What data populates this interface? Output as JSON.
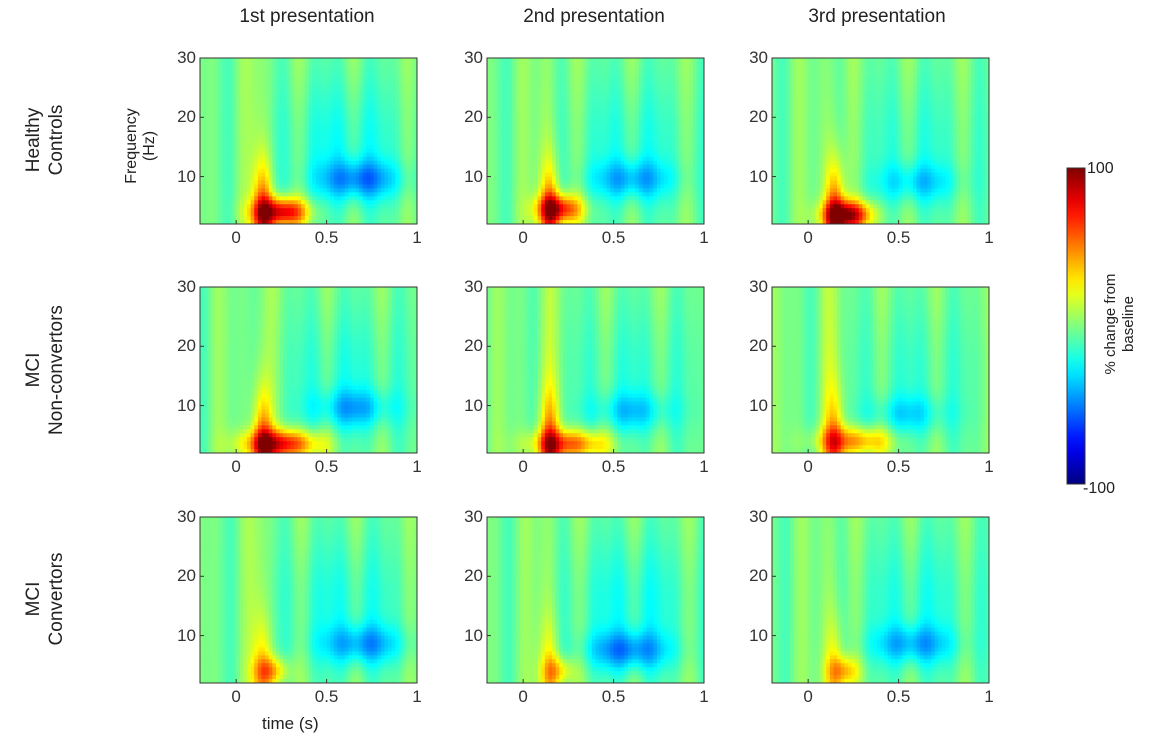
{
  "chart_data": {
    "type": "heatmap",
    "description": "Time-frequency power maps, % change from baseline, 3 groups x 3 presentations",
    "columns": [
      "1st presentation",
      "2nd presentation",
      "3rd presentation"
    ],
    "rows": [
      {
        "lines": [
          "Healthy",
          "Controls"
        ]
      },
      {
        "lines": [
          "MCI",
          "Non-convertors"
        ]
      },
      {
        "lines": [
          "MCI",
          "Convertors"
        ]
      }
    ],
    "x_ticks": [
      "0",
      "0.5",
      "1"
    ],
    "x_tick_values": [
      0,
      0.5,
      1
    ],
    "xlim": [
      -0.2,
      1.0
    ],
    "y_ticks": [
      "10",
      "20",
      "30"
    ],
    "y_tick_values": [
      10,
      20,
      30
    ],
    "ylim": [
      2,
      30
    ],
    "xlabel": "time (s)",
    "ylabel": [
      "Frequency",
      "(Hz)"
    ],
    "colorbar": {
      "label": [
        "% change from",
        "baseline"
      ],
      "max_label": "100",
      "min_label": "-100",
      "range": [
        -100,
        100
      ],
      "colormap": "jet"
    },
    "panels": [
      [
        {
          "theta_peak": 92,
          "theta_t": 0.25,
          "theta_f": 4.0,
          "theta_width_t": 0.14,
          "alpha_min": -40,
          "alpha_t": 0.68,
          "alpha_f": 9.5
        },
        {
          "theta_peak": 78,
          "theta_t": 0.2,
          "theta_f": 4.5,
          "theta_width_t": 0.12,
          "alpha_min": -32,
          "alpha_t": 0.6,
          "alpha_f": 9.5
        },
        {
          "theta_peak": 95,
          "theta_t": 0.22,
          "theta_f": 3.5,
          "theta_width_t": 0.13,
          "alpha_min": -25,
          "alpha_t": 0.6,
          "alpha_f": 9.0
        }
      ],
      [
        {
          "theta_peak": 82,
          "theta_t": 0.25,
          "theta_f": 3.5,
          "theta_width_t": 0.2,
          "alpha_min": -30,
          "alpha_t": 0.65,
          "alpha_f": 9.5
        },
        {
          "theta_peak": 65,
          "theta_t": 0.25,
          "theta_f": 3.5,
          "theta_width_t": 0.2,
          "alpha_min": -25,
          "alpha_t": 0.6,
          "alpha_f": 9.0
        },
        {
          "theta_peak": 52,
          "theta_t": 0.25,
          "theta_f": 4.0,
          "theta_width_t": 0.2,
          "alpha_min": -22,
          "alpha_t": 0.55,
          "alpha_f": 8.5
        }
      ],
      [
        {
          "theta_peak": 42,
          "theta_t": 0.2,
          "theta_f": 4.0,
          "theta_width_t": 0.09,
          "alpha_min": -35,
          "alpha_t": 0.7,
          "alpha_f": 8.5
        },
        {
          "theta_peak": 35,
          "theta_t": 0.2,
          "theta_f": 4.0,
          "theta_width_t": 0.08,
          "alpha_min": -40,
          "alpha_t": 0.58,
          "alpha_f": 7.5
        },
        {
          "theta_peak": 38,
          "theta_t": 0.2,
          "theta_f": 4.0,
          "theta_width_t": 0.08,
          "alpha_min": -33,
          "alpha_t": 0.58,
          "alpha_f": 8.5
        }
      ]
    ]
  }
}
